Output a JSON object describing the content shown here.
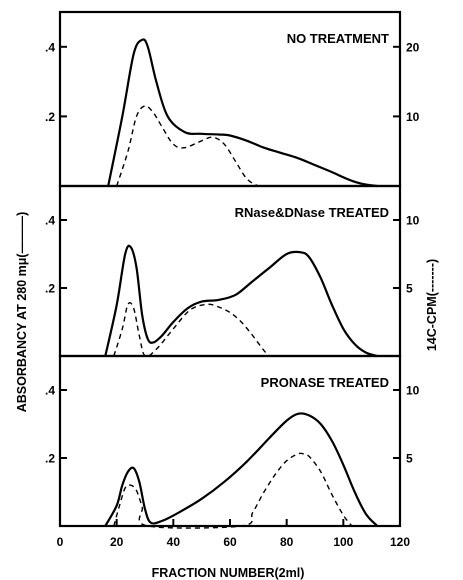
{
  "chart_data": {
    "type": "line",
    "xlabel": "FRACTION NUMBER(2ml)",
    "xticks": [
      "0",
      "20",
      "40",
      "60",
      "80",
      "100",
      "120"
    ],
    "xlim": [
      0,
      120
    ],
    "ylabel_left": "ABSORBANCY AT 280 mμ(———)",
    "ylabel_right": "14C-CPM(-------)",
    "legend": "none",
    "grid": false,
    "panels": [
      {
        "title": "NO TREATMENT",
        "left_ticks": [
          ".4",
          ".2"
        ],
        "left_tick_values": [
          0.4,
          0.2
        ],
        "right_ticks": [
          "20",
          "10"
        ],
        "right_tick_values": [
          20,
          10
        ],
        "absorbance": {
          "style": "solid",
          "x": [
            17,
            22,
            26,
            29,
            31,
            34,
            38,
            44,
            50,
            56,
            60,
            66,
            72,
            78,
            84,
            90,
            96,
            100,
            104,
            108,
            112
          ],
          "y": [
            0.0,
            0.2,
            0.38,
            0.42,
            0.4,
            0.3,
            0.2,
            0.155,
            0.15,
            0.148,
            0.145,
            0.13,
            0.11,
            0.095,
            0.08,
            0.06,
            0.04,
            0.025,
            0.012,
            0.004,
            0.0
          ]
        },
        "cpm": {
          "style": "dashed",
          "x": [
            20,
            24,
            27,
            30,
            33,
            36,
            40,
            44,
            50,
            54,
            58,
            62,
            66,
            70
          ],
          "y": [
            0.0,
            5.0,
            10.0,
            11.5,
            10.5,
            8.5,
            6.0,
            5.5,
            6.5,
            7.0,
            6.0,
            3.5,
            1.0,
            0.0
          ]
        }
      },
      {
        "title": "RNase&DNase TREATED",
        "left_ticks": [
          ".4",
          ".2"
        ],
        "left_tick_values": [
          0.4,
          0.2
        ],
        "right_ticks": [
          "10",
          "5"
        ],
        "right_tick_values": [
          10,
          5
        ],
        "absorbance": {
          "style": "solid",
          "x": [
            16,
            20,
            23,
            25,
            27,
            29,
            31,
            33,
            36,
            40,
            45,
            50,
            56,
            62,
            68,
            74,
            80,
            85,
            88,
            92,
            96,
            100,
            104,
            108,
            112
          ],
          "y": [
            0.0,
            0.15,
            0.3,
            0.32,
            0.26,
            0.12,
            0.05,
            0.04,
            0.06,
            0.1,
            0.14,
            0.16,
            0.165,
            0.18,
            0.22,
            0.26,
            0.3,
            0.305,
            0.29,
            0.23,
            0.15,
            0.08,
            0.035,
            0.01,
            0.0
          ]
        },
        "cpm": {
          "style": "dashed",
          "x": [
            19,
            22,
            24,
            26,
            28,
            30,
            34,
            40,
            46,
            52,
            56,
            60,
            64,
            68,
            72,
            74
          ],
          "y": [
            0.0,
            2.0,
            3.8,
            3.5,
            1.5,
            0.0,
            0.5,
            2.0,
            3.4,
            3.8,
            3.6,
            3.2,
            2.5,
            1.5,
            0.4,
            0.0
          ]
        }
      },
      {
        "title": "PRONASE TREATED",
        "left_ticks": [
          ".4",
          ".2"
        ],
        "left_tick_values": [
          0.4,
          0.2
        ],
        "right_ticks": [
          "10",
          "5"
        ],
        "right_tick_values": [
          10,
          5
        ],
        "absorbance": {
          "style": "solid",
          "x": [
            16,
            20,
            22,
            24,
            26,
            28,
            30,
            32,
            36,
            42,
            50,
            58,
            66,
            74,
            80,
            84,
            88,
            92,
            96,
            100,
            104,
            108,
            112
          ],
          "y": [
            0.0,
            0.06,
            0.12,
            0.16,
            0.17,
            0.13,
            0.05,
            0.01,
            0.015,
            0.04,
            0.08,
            0.13,
            0.19,
            0.26,
            0.31,
            0.33,
            0.325,
            0.3,
            0.25,
            0.18,
            0.1,
            0.035,
            0.0
          ]
        },
        "cpm": {
          "style": "dashed",
          "x": [
            19,
            21,
            23,
            25,
            27,
            29,
            31,
            64,
            68,
            72,
            76,
            80,
            84,
            86,
            88,
            92,
            96,
            100,
            103
          ],
          "y": [
            0.0,
            1.5,
            2.8,
            3.0,
            2.6,
            1.4,
            0.0,
            0.0,
            1.0,
            2.5,
            3.8,
            4.8,
            5.3,
            5.3,
            5.1,
            4.0,
            2.3,
            0.8,
            0.0
          ]
        }
      }
    ]
  }
}
